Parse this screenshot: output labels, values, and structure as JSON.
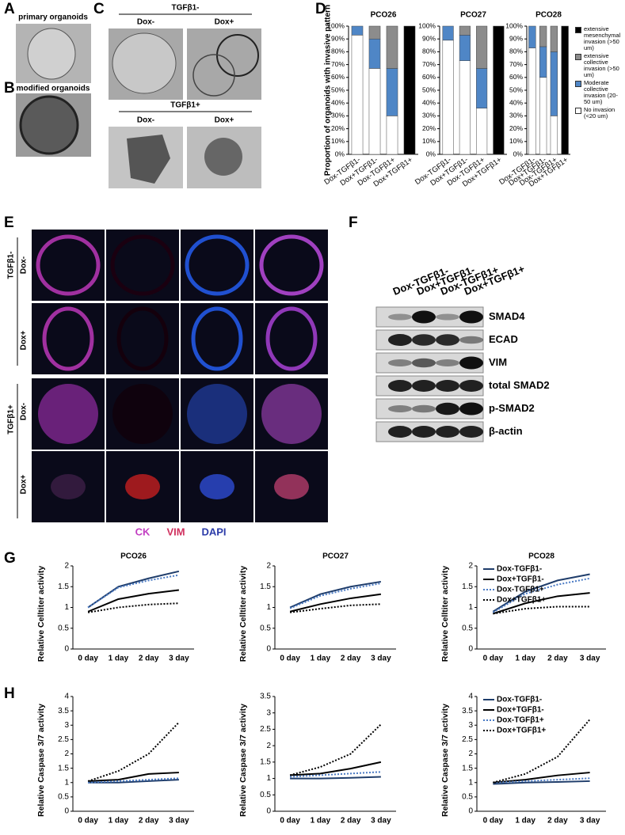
{
  "panel_labels": [
    "A",
    "B",
    "C",
    "D",
    "E",
    "F",
    "G",
    "H"
  ],
  "panel_a": {
    "caption": "primary organoids"
  },
  "panel_b": {
    "caption": "modified organoids"
  },
  "panel_c": {
    "groups": [
      {
        "label": "TGFβ1-",
        "columns": [
          "Dox-",
          "Dox+"
        ]
      },
      {
        "label": "TGFβ1+",
        "columns": [
          "Dox-",
          "Dox+"
        ]
      }
    ]
  },
  "panel_e": {
    "groups": [
      {
        "label": "TGFβ1-",
        "rows": [
          "Dox-",
          "Dox+"
        ]
      },
      {
        "label": "TGFβ1+",
        "rows": [
          "Dox-",
          "Dox+"
        ]
      }
    ],
    "stains": [
      "CK",
      "VIM",
      "DAPI"
    ]
  },
  "panel_f": {
    "lanes": [
      "Dox-TGFβ1-",
      "Dox+TGFβ1-",
      "Dox-TGFβ1+",
      "Dox+TGFβ1+"
    ],
    "proteins": [
      "SMAD4",
      "ECAD",
      "VIM",
      "total SMAD2",
      "p-SMAD2",
      "β-actin"
    ]
  },
  "chart_data": [
    {
      "type": "bar",
      "stacked": true,
      "title": "PCO26",
      "ylabel": "Proportion of organoids with invasive pattern",
      "categories": [
        "Dox-TGFβ1-",
        "Dox+TGFβ1-",
        "Dox-TGFβ1+",
        "Dox+TGFβ1+"
      ],
      "series": [
        {
          "color": "#ffffff",
          "values": [
            93,
            67,
            30,
            0
          ]
        },
        {
          "color": "#4f86c6",
          "values": [
            7,
            23,
            37,
            0
          ]
        },
        {
          "color": "#8c8c8c",
          "values": [
            0,
            10,
            33,
            0
          ]
        },
        {
          "color": "#000000",
          "values": [
            0,
            0,
            0,
            100
          ]
        }
      ],
      "ylim": [
        0,
        100
      ],
      "yticks": [
        {
          "value": 0,
          "label": "0%"
        },
        {
          "value": 10,
          "label": "10%"
        },
        {
          "value": 20,
          "label": "20%"
        },
        {
          "value": 30,
          "label": "30%"
        },
        {
          "value": 40,
          "label": "40%"
        },
        {
          "value": 50,
          "label": "50%"
        },
        {
          "value": 60,
          "label": "60%"
        },
        {
          "value": 70,
          "label": "70%"
        },
        {
          "value": 80,
          "label": "80%"
        },
        {
          "value": 90,
          "label": "90%"
        },
        {
          "value": 100,
          "label": "100%"
        }
      ]
    },
    {
      "type": "bar",
      "stacked": true,
      "title": "PCO27",
      "categories": [
        "Dox-TGFβ1-",
        "Dox+TGFβ1-",
        "Dox-TGFβ1+",
        "Dox+TGFβ1+"
      ],
      "series": [
        {
          "color": "#ffffff",
          "values": [
            89,
            73,
            36,
            0
          ]
        },
        {
          "color": "#4f86c6",
          "values": [
            11,
            20,
            31,
            0
          ]
        },
        {
          "color": "#8c8c8c",
          "values": [
            0,
            7,
            33,
            0
          ]
        },
        {
          "color": "#000000",
          "values": [
            0,
            0,
            0,
            100
          ]
        }
      ],
      "ylim": [
        0,
        100
      ],
      "yticks": [
        {
          "value": 0,
          "label": "0%"
        },
        {
          "value": 10,
          "label": "10%"
        },
        {
          "value": 20,
          "label": "20%"
        },
        {
          "value": 30,
          "label": "30%"
        },
        {
          "value": 40,
          "label": "40%"
        },
        {
          "value": 50,
          "label": "50%"
        },
        {
          "value": 60,
          "label": "60%"
        },
        {
          "value": 70,
          "label": "70%"
        },
        {
          "value": 80,
          "label": "80%"
        },
        {
          "value": 90,
          "label": "90%"
        },
        {
          "value": 100,
          "label": "100%"
        }
      ]
    },
    {
      "type": "bar",
      "stacked": true,
      "title": "PCO28",
      "legend": "right",
      "categories": [
        "Dox-TGFβ1-",
        "Dox+TGFβ1-",
        "Dox-TGFβ1+",
        "Dox+TGFβ1+"
      ],
      "series": [
        {
          "name": "No invasion (<20 um)",
          "color": "#ffffff",
          "values": [
            83,
            60,
            30,
            0
          ]
        },
        {
          "name": "Moderate collective invasion (20-50 um)",
          "color": "#4f86c6",
          "values": [
            17,
            24,
            50,
            0
          ]
        },
        {
          "name": "extensive collective invasion (>50 um)",
          "color": "#8c8c8c",
          "values": [
            0,
            16,
            20,
            0
          ]
        },
        {
          "name": "extensive mesenchymal invasion (>50 um)",
          "color": "#000000",
          "values": [
            0,
            0,
            0,
            100
          ]
        }
      ],
      "ylim": [
        0,
        100
      ],
      "yticks": [
        {
          "value": 0,
          "label": "0%"
        },
        {
          "value": 10,
          "label": "10%"
        },
        {
          "value": 20,
          "label": "20%"
        },
        {
          "value": 30,
          "label": "30%"
        },
        {
          "value": 40,
          "label": "40%"
        },
        {
          "value": 50,
          "label": "50%"
        },
        {
          "value": 60,
          "label": "60%"
        },
        {
          "value": 70,
          "label": "70%"
        },
        {
          "value": 80,
          "label": "80%"
        },
        {
          "value": 90,
          "label": "90%"
        },
        {
          "value": 100,
          "label": "100%"
        }
      ]
    },
    {
      "type": "line",
      "title": "PCO26",
      "ylabel": "Relative Celltiter activity",
      "categories": [
        "0 day",
        "1 day",
        "2 day",
        "3 day"
      ],
      "series": [
        {
          "color": "#1f3d6b",
          "dash": "solid",
          "values": [
            1.0,
            1.5,
            1.7,
            1.87
          ]
        },
        {
          "color": "#000000",
          "dash": "solid",
          "values": [
            0.9,
            1.2,
            1.33,
            1.42
          ]
        },
        {
          "color": "#4a7ac4",
          "dash": "dotted",
          "values": [
            1.0,
            1.48,
            1.65,
            1.78
          ]
        },
        {
          "color": "#000000",
          "dash": "dotted",
          "values": [
            0.88,
            1.0,
            1.07,
            1.1
          ]
        }
      ],
      "ylim": [
        0,
        2
      ],
      "yticks": [
        0,
        0.5,
        1,
        1.5,
        2
      ]
    },
    {
      "type": "line",
      "title": "PCO27",
      "ylabel": "Relative Celltiter activity",
      "categories": [
        "0 day",
        "1 day",
        "2 day",
        "3 day"
      ],
      "series": [
        {
          "color": "#1f3d6b",
          "dash": "solid",
          "values": [
            1.0,
            1.32,
            1.5,
            1.62
          ]
        },
        {
          "color": "#000000",
          "dash": "solid",
          "values": [
            0.9,
            1.08,
            1.22,
            1.32
          ]
        },
        {
          "color": "#4a7ac4",
          "dash": "dotted",
          "values": [
            0.98,
            1.28,
            1.45,
            1.58
          ]
        },
        {
          "color": "#000000",
          "dash": "dotted",
          "values": [
            0.88,
            0.97,
            1.05,
            1.08
          ]
        }
      ],
      "ylim": [
        0,
        2
      ],
      "yticks": [
        0,
        0.5,
        1,
        1.5,
        2
      ]
    },
    {
      "type": "line",
      "title": "PCO28",
      "ylabel": "Relative Celltiter activity",
      "legend": "upper left",
      "categories": [
        "0 day",
        "1 day",
        "2 day",
        "3 day"
      ],
      "series": [
        {
          "name": "Dox-TGFβ1-",
          "color": "#1f3d6b",
          "dash": "solid",
          "values": [
            0.9,
            1.38,
            1.65,
            1.8
          ]
        },
        {
          "name": "Dox+TGFβ1-",
          "color": "#000000",
          "dash": "solid",
          "values": [
            0.85,
            1.1,
            1.27,
            1.35
          ]
        },
        {
          "name": "Dox-TGFβ1+",
          "color": "#4a7ac4",
          "dash": "dotted",
          "values": [
            0.88,
            1.33,
            1.55,
            1.7
          ]
        },
        {
          "name": "Dox+TGFβ1+",
          "color": "#000000",
          "dash": "dotted",
          "values": [
            0.85,
            0.97,
            1.02,
            1.02
          ]
        }
      ],
      "ylim": [
        0,
        2
      ],
      "yticks": [
        0,
        0.5,
        1,
        1.5,
        2
      ]
    },
    {
      "type": "line",
      "ylabel": "Relative Caspase 3/7 activity",
      "categories": [
        "0 day",
        "1 day",
        "2 day",
        "3 day"
      ],
      "series": [
        {
          "color": "#1f3d6b",
          "dash": "solid",
          "values": [
            1.0,
            1.0,
            1.05,
            1.1
          ]
        },
        {
          "color": "#000000",
          "dash": "solid",
          "values": [
            1.05,
            1.1,
            1.3,
            1.35
          ]
        },
        {
          "color": "#4a7ac4",
          "dash": "dotted",
          "values": [
            1.0,
            1.05,
            1.1,
            1.15
          ]
        },
        {
          "color": "#000000",
          "dash": "dotted",
          "values": [
            1.05,
            1.4,
            2.0,
            3.1
          ]
        }
      ],
      "ylim": [
        0,
        4
      ],
      "yticks": [
        0,
        0.5,
        1,
        1.5,
        2,
        2.5,
        3,
        3.5,
        4
      ]
    },
    {
      "type": "line",
      "ylabel": "Relative Caspase 3/7 activity",
      "categories": [
        "0 day",
        "1 day",
        "2 day",
        "3 day"
      ],
      "series": [
        {
          "color": "#1f3d6b",
          "dash": "solid",
          "values": [
            1.0,
            1.0,
            1.02,
            1.05
          ]
        },
        {
          "color": "#000000",
          "dash": "solid",
          "values": [
            1.1,
            1.15,
            1.3,
            1.5
          ]
        },
        {
          "color": "#4a7ac4",
          "dash": "dotted",
          "values": [
            1.05,
            1.1,
            1.15,
            1.2
          ]
        },
        {
          "color": "#000000",
          "dash": "dotted",
          "values": [
            1.1,
            1.35,
            1.75,
            2.65
          ]
        }
      ],
      "ylim": [
        0,
        3.5
      ],
      "yticks": [
        0,
        0.5,
        1,
        1.5,
        2,
        2.5,
        3,
        3.5
      ]
    },
    {
      "type": "line",
      "ylabel": "Relative Caspase 3/7 activity",
      "legend": "upper left",
      "categories": [
        "0 day",
        "1 day",
        "2 day",
        "3 day"
      ],
      "series": [
        {
          "name": "Dox-TGFβ1-",
          "color": "#1f3d6b",
          "dash": "solid",
          "values": [
            0.95,
            1.0,
            1.02,
            1.05
          ]
        },
        {
          "name": "Dox+TGFβ1-",
          "color": "#000000",
          "dash": "solid",
          "values": [
            1.0,
            1.1,
            1.25,
            1.35
          ]
        },
        {
          "name": "Dox-TGFβ1+",
          "color": "#4a7ac4",
          "dash": "dotted",
          "values": [
            1.0,
            1.05,
            1.1,
            1.15
          ]
        },
        {
          "name": "Dox+TGFβ1+",
          "color": "#000000",
          "dash": "dotted",
          "values": [
            1.0,
            1.3,
            1.9,
            3.2
          ]
        }
      ],
      "ylim": [
        0,
        4
      ],
      "yticks": [
        0,
        0.5,
        1,
        1.5,
        2,
        2.5,
        3,
        3.5,
        4
      ]
    }
  ]
}
